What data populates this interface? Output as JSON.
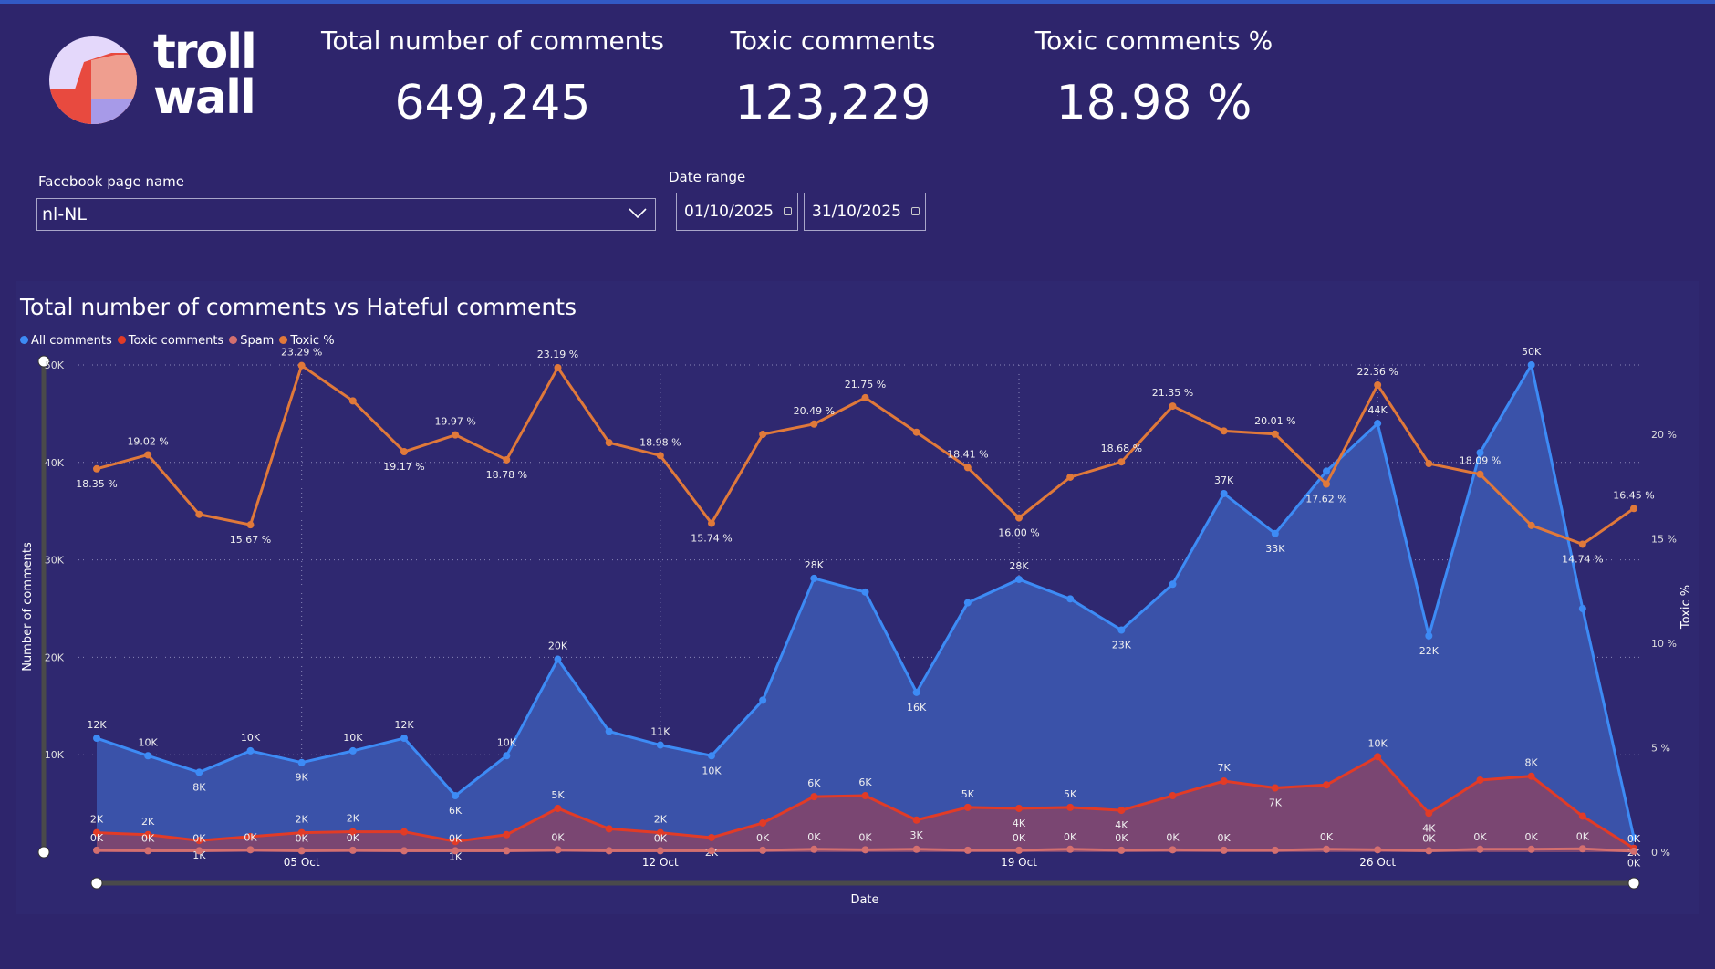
{
  "brand": {
    "logo_text_1": "troll",
    "logo_text_2": "wall"
  },
  "kpis": [
    {
      "title": "Total number of comments",
      "value": "649,245"
    },
    {
      "title": "Toxic comments",
      "value": "123,229"
    },
    {
      "title": "Toxic comments %",
      "value": "18.98 %"
    }
  ],
  "filters": {
    "page_label": "Facebook page name",
    "page_value": "nl-NL",
    "date_label": "Date range",
    "date_from": "01/10/2025",
    "date_to": "31/10/2025"
  },
  "chart_data": {
    "type": "line",
    "title": "Total number of comments vs Hateful comments",
    "xlabel": "Date",
    "ylabel": "Number of comments",
    "y2label": "Toxic %",
    "ylim": [
      0,
      50000
    ],
    "y2lim": [
      0,
      23.3
    ],
    "yticks": [
      "10K",
      "20K",
      "30K",
      "40K",
      "50K"
    ],
    "y2ticks": [
      "0 %",
      "5 %",
      "10 %",
      "15 %",
      "20 %"
    ],
    "xticks": [
      {
        "day": 5,
        "label": "05 Oct"
      },
      {
        "day": 12,
        "label": "12 Oct"
      },
      {
        "day": 19,
        "label": "19 Oct"
      },
      {
        "day": 26,
        "label": "26 Oct"
      }
    ],
    "days": [
      1,
      2,
      3,
      4,
      5,
      6,
      7,
      8,
      9,
      10,
      11,
      12,
      13,
      14,
      15,
      16,
      17,
      18,
      19,
      20,
      21,
      22,
      23,
      24,
      25,
      26,
      27,
      28,
      29,
      30,
      31
    ],
    "legend": [
      {
        "name": "All comments",
        "color": "#3d8bf5"
      },
      {
        "name": "Toxic comments",
        "color": "#e23b26"
      },
      {
        "name": "Spam",
        "color": "#d46f6f"
      },
      {
        "name": "Toxic %",
        "color": "#e0793a"
      }
    ],
    "series": [
      {
        "name": "All comments",
        "values": [
          11700,
          9900,
          8200,
          10400,
          9200,
          10400,
          11700,
          5800,
          9900,
          19800,
          12400,
          11000,
          9900,
          15600,
          28100,
          26700,
          16400,
          25600,
          28000,
          26000,
          22800,
          27500,
          36800,
          32700,
          39100,
          44000,
          22200,
          41000,
          50000,
          25000,
          1500
        ],
        "labels": [
          "12K",
          "10K",
          "8K",
          "10K",
          "9K",
          "10K",
          "12K",
          "6K",
          "10K",
          "20K",
          null,
          "11K",
          "10K",
          null,
          "28K",
          null,
          "16K",
          null,
          "28K",
          null,
          "23K",
          null,
          "37K",
          "33K",
          null,
          "44K",
          "22K",
          null,
          "50K",
          null,
          "2K"
        ]
      },
      {
        "name": "Toxic comments",
        "values": [
          2000,
          1800,
          1200,
          1600,
          2000,
          2100,
          2100,
          1100,
          1800,
          4500,
          2400,
          2000,
          1500,
          3000,
          5700,
          5800,
          3300,
          4600,
          4500,
          4600,
          4300,
          5800,
          7300,
          6600,
          6900,
          9800,
          4000,
          7400,
          7800,
          3700,
          400
        ],
        "labels": [
          "2K",
          "2K",
          "1K",
          null,
          "2K",
          "2K",
          null,
          "1K",
          null,
          "5K",
          null,
          "2K",
          "2K",
          null,
          "6K",
          "6K",
          "3K",
          "5K",
          "4K",
          "5K",
          "4K",
          null,
          "7K",
          "7K",
          null,
          "10K",
          "4K",
          null,
          "8K",
          null,
          "0K"
        ]
      },
      {
        "name": "Spam",
        "values": [
          200,
          150,
          150,
          250,
          150,
          200,
          150,
          150,
          150,
          250,
          150,
          150,
          150,
          200,
          300,
          250,
          300,
          200,
          200,
          300,
          200,
          250,
          200,
          200,
          300,
          250,
          150,
          300,
          300,
          350,
          100
        ],
        "labels": [
          "0K",
          "0K",
          "0K",
          "0K",
          "0K",
          "0K",
          null,
          "0K",
          null,
          "0K",
          null,
          "0K",
          null,
          "0K",
          "0K",
          "0K",
          null,
          null,
          "0K",
          "0K",
          "0K",
          "0K",
          "0K",
          null,
          "0K",
          null,
          "0K",
          "0K",
          "0K",
          "0K",
          "0K"
        ]
      },
      {
        "name": "Toxic %",
        "values": [
          18.35,
          19.02,
          16.17,
          15.67,
          23.29,
          21.6,
          19.17,
          19.97,
          18.78,
          23.19,
          19.6,
          18.98,
          15.74,
          20.0,
          20.49,
          21.75,
          20.1,
          18.41,
          16.0,
          17.95,
          18.68,
          21.35,
          20.16,
          20.01,
          17.62,
          22.36,
          18.6,
          18.09,
          15.64,
          14.74,
          16.45
        ],
        "labels": [
          "18.35 %",
          "19.02 %",
          null,
          "15.67 %",
          "23.29 %",
          null,
          "19.17 %",
          "19.97 %",
          "18.78 %",
          "23.19 %",
          null,
          "18.98 %",
          "15.74 %",
          null,
          "20.49 %",
          "21.75 %",
          null,
          "18.41 %",
          "16.00 %",
          null,
          "18.68 %",
          "21.35 %",
          null,
          "20.01 %",
          "17.62 %",
          "22.36 %",
          null,
          "18.09 %",
          null,
          "14.74 %",
          "16.45 %"
        ]
      }
    ]
  }
}
